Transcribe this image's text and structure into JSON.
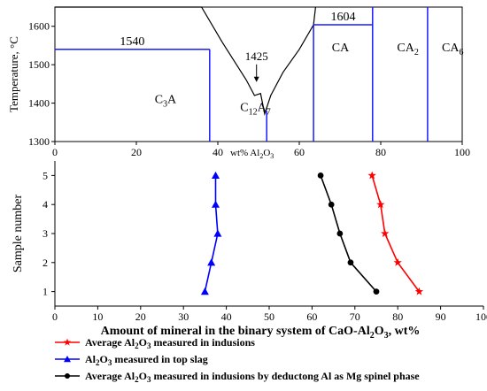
{
  "chart_data": [
    {
      "type": "line",
      "panel": "top",
      "ylabel": "Temperature, °C",
      "xlabel_prefix": "wt% Al",
      "xlabel_sub": "2",
      "xlabel_mid": "O",
      "xlabel_sub2": "3",
      "xlim": [
        0,
        100
      ],
      "ylim": [
        1300,
        1650
      ],
      "x_ticks": [
        0,
        20,
        40,
        60,
        80,
        100
      ],
      "y_ticks": [
        1300,
        1400,
        1500,
        1600
      ],
      "liquidus": [
        {
          "x": 0,
          "y": 1650
        },
        {
          "x": 36,
          "y": 1650
        },
        {
          "x": 41,
          "y": 1560
        },
        {
          "x": 44,
          "y": 1510
        },
        {
          "x": 47,
          "y": 1460
        },
        {
          "x": 49,
          "y": 1420
        },
        {
          "x": 50.5,
          "y": 1425
        },
        {
          "x": 51.5,
          "y": 1372
        },
        {
          "x": 53,
          "y": 1420
        },
        {
          "x": 56,
          "y": 1480
        },
        {
          "x": 60,
          "y": 1540
        },
        {
          "x": 63.5,
          "y": 1604
        },
        {
          "x": 64,
          "y": 1650
        }
      ],
      "isotherms": [
        {
          "label": "1540",
          "y": 1540,
          "x_from": 0,
          "x_to": 38
        },
        {
          "label": "1604",
          "y": 1604,
          "x_from": 63.5,
          "x_to": 78
        }
      ],
      "compound_lines": [
        {
          "x": 38,
          "y_from": 1300,
          "y_to": 1540
        },
        {
          "x": 52,
          "y_from": 1300,
          "y_to": 1380
        },
        {
          "x": 63.5,
          "y_from": 1300,
          "y_to": 1604
        },
        {
          "x": 78,
          "y_from": 1300,
          "y_to": 1650
        },
        {
          "x": 91.5,
          "y_from": 1300,
          "y_to": 1650
        }
      ],
      "phase_labels": [
        {
          "main": "C",
          "sub": "3",
          "main2": "A",
          "sub2": ""
        },
        {
          "main": "C",
          "sub": "12",
          "main2": "A",
          "sub2": "7"
        },
        {
          "main": "CA",
          "sub": "",
          "main2": "",
          "sub2": ""
        },
        {
          "main": "CA",
          "sub": "2",
          "main2": "",
          "sub2": ""
        },
        {
          "main": "CA",
          "sub": "6",
          "main2": "",
          "sub2": ""
        }
      ],
      "eutectic_label": "1425",
      "color": "#1a1aff"
    },
    {
      "type": "line",
      "panel": "bottom",
      "xlabel": "Amount of mineral in the binary system of CaO-Al",
      "xlabel_sub": "2",
      "xlabel_mid": "O",
      "xlabel_sub2": "3",
      "xlabel_tail": ", wt%",
      "ylabel": "Sample number",
      "xlim": [
        0,
        100
      ],
      "ylim": [
        0.5,
        5.5
      ],
      "x_ticks": [
        0,
        10,
        20,
        30,
        40,
        50,
        60,
        70,
        80,
        90,
        100
      ],
      "y_ticks": [
        1,
        2,
        3,
        4,
        5
      ],
      "series": [
        {
          "name": "Average Al2O3 measured in indusions",
          "legend_parts": [
            "Average Al",
            "2",
            "O",
            "3",
            " measured in indusions"
          ],
          "color": "#ff0000",
          "marker": "star",
          "points": [
            [
              85,
              1
            ],
            [
              80,
              2
            ],
            [
              77,
              3
            ],
            [
              76,
              4
            ],
            [
              74,
              5
            ]
          ]
        },
        {
          "name": "Al2O3 measured in top slag",
          "legend_parts": [
            "Al",
            "2",
            "O",
            "3",
            " measured in top slag"
          ],
          "color": "#0000ff",
          "marker": "triangle",
          "points": [
            [
              35,
              1
            ],
            [
              36.5,
              2
            ],
            [
              38,
              3
            ],
            [
              37.5,
              4
            ],
            [
              37.5,
              5
            ]
          ]
        },
        {
          "name": "Average Al2O3 measured in indusions by deductong Al as Mg spinel phase",
          "legend_parts": [
            "Average Al",
            "2",
            "O",
            "3",
            " measured in indusions by deductong Al as Mg spinel phase"
          ],
          "color": "#000000",
          "marker": "circle",
          "points": [
            [
              75,
              1
            ],
            [
              69,
              2
            ],
            [
              66.5,
              3
            ],
            [
              64.5,
              4
            ],
            [
              62,
              5
            ]
          ]
        }
      ]
    }
  ]
}
